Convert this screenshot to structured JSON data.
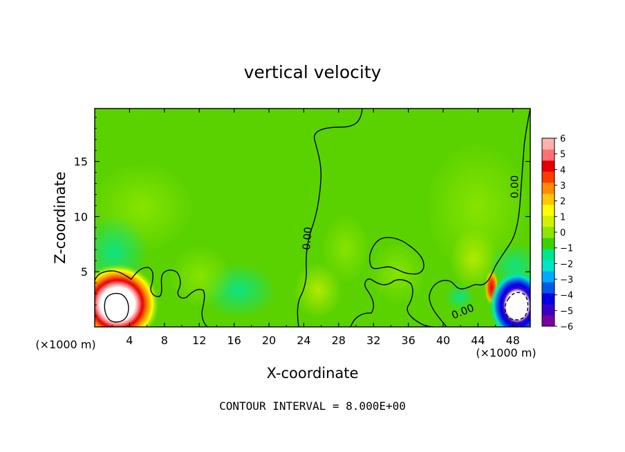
{
  "chart_data": {
    "type": "heatmap",
    "title": "vertical velocity",
    "xlabel": "X-coordinate",
    "ylabel": "Z-coordinate",
    "x_unit": "(×1000 m)",
    "y_unit": "(×1000 m)",
    "xlim": [
      0,
      50
    ],
    "ylim": [
      0,
      19.8
    ],
    "x_ticks": [
      4,
      8,
      12,
      16,
      20,
      24,
      28,
      32,
      36,
      40,
      44,
      48
    ],
    "y_ticks": [
      5,
      10,
      15
    ],
    "colorbar": {
      "min": -6,
      "max": 6,
      "ticks": [
        6,
        5,
        4,
        3,
        2,
        1,
        0,
        -1,
        -2,
        -3,
        -4,
        -5,
        -6
      ],
      "tick_labels": [
        "6",
        "5",
        "4",
        "3",
        "2",
        "1",
        "0",
        "−1",
        "−2",
        "−3",
        "−4",
        "−5",
        "−6"
      ],
      "colors": [
        "#7b00a0",
        "#3a00c8",
        "#0000e6",
        "#005ae6",
        "#00aaff",
        "#00e6c8",
        "#00e68c",
        "#3cd200",
        "#8ce600",
        "#d2f000",
        "#ffff00",
        "#ffc800",
        "#ff8c00",
        "#ff3c00",
        "#e60000",
        "#ff7070",
        "#ffb0b0"
      ]
    },
    "background_value": 0.3,
    "features": [
      {
        "name": "updraft-left",
        "x": 2.5,
        "z": 2.5,
        "peak": 9
      },
      {
        "name": "downdraft-right",
        "x": 48.5,
        "z": 2.0,
        "peak": -9
      },
      {
        "name": "updraft-right",
        "x": 45.5,
        "z": 3.3,
        "peak": 4
      }
    ],
    "contour_labels": [
      {
        "text": "0.00",
        "x": 24.8,
        "z": 8.0,
        "angle": -85
      },
      {
        "text": "0.00",
        "x": 48.6,
        "z": 12.7,
        "angle": -90
      },
      {
        "text": "0.00",
        "x": 42.4,
        "z": 1.1,
        "angle": -22
      }
    ],
    "contour_interval_label": "CONTOUR INTERVAL = 8.000E+00"
  }
}
